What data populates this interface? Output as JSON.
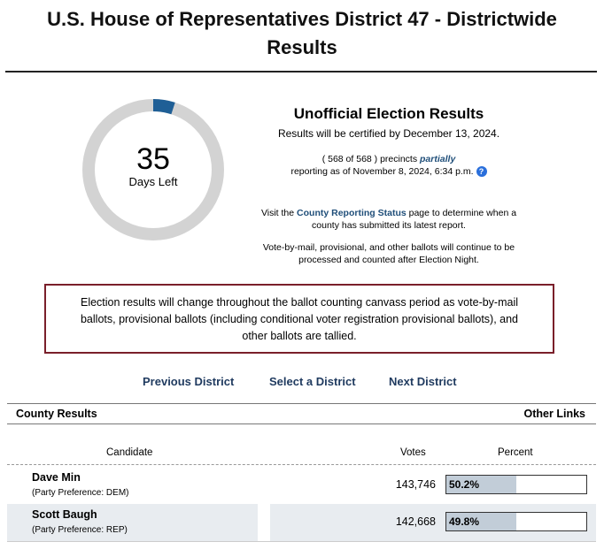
{
  "page": {
    "title_line1": "U.S. House of Representatives District 47 - Districtwide",
    "title_line2": "Results"
  },
  "countdown": {
    "days": "35",
    "label": "Days Left",
    "progress_fraction": 0.05,
    "ring_color": "#d3d3d3",
    "progress_color": "#1f5f96"
  },
  "summary": {
    "heading": "Unofficial Election Results",
    "certified": "Results will be certified by December 13, 2024.",
    "precincts_prefix": "( 568 of 568 ) precincts",
    "precincts_partial": "partially",
    "precincts_reporting": "reporting as of November 8, 2024, 6:34 p.m.",
    "help_icon": "question-circle-icon",
    "visit_prefix": "Visit the",
    "visit_link": "County Reporting Status",
    "visit_suffix": "page to determine when a",
    "visit_line2": "county has submitted its latest report.",
    "vbm_line1": "Vote-by-mail, provisional, and other ballots will continue to be",
    "vbm_line2": "processed and counted after Election Night."
  },
  "notice": {
    "line1": "Election results will change throughout the ballot counting canvass period as vote-by-mail",
    "line2": "ballots, provisional ballots (including conditional voter registration provisional ballots), and",
    "line3": "other ballots are tallied."
  },
  "nav": {
    "previous": "Previous District",
    "select": "Select a District",
    "next": "Next District"
  },
  "section": {
    "county_results": "County Results",
    "other_links": "Other Links"
  },
  "table": {
    "headers": {
      "candidate": "Candidate",
      "votes": "Votes",
      "percent": "Percent"
    },
    "rows": [
      {
        "name": "Dave Min",
        "party": "(Party Preference: DEM)",
        "votes": "143,746",
        "percent": "50.2%",
        "fraction": 0.502
      },
      {
        "name": "Scott Baugh",
        "party": "(Party Preference: REP)",
        "votes": "142,668",
        "percent": "49.8%",
        "fraction": 0.498
      }
    ]
  }
}
